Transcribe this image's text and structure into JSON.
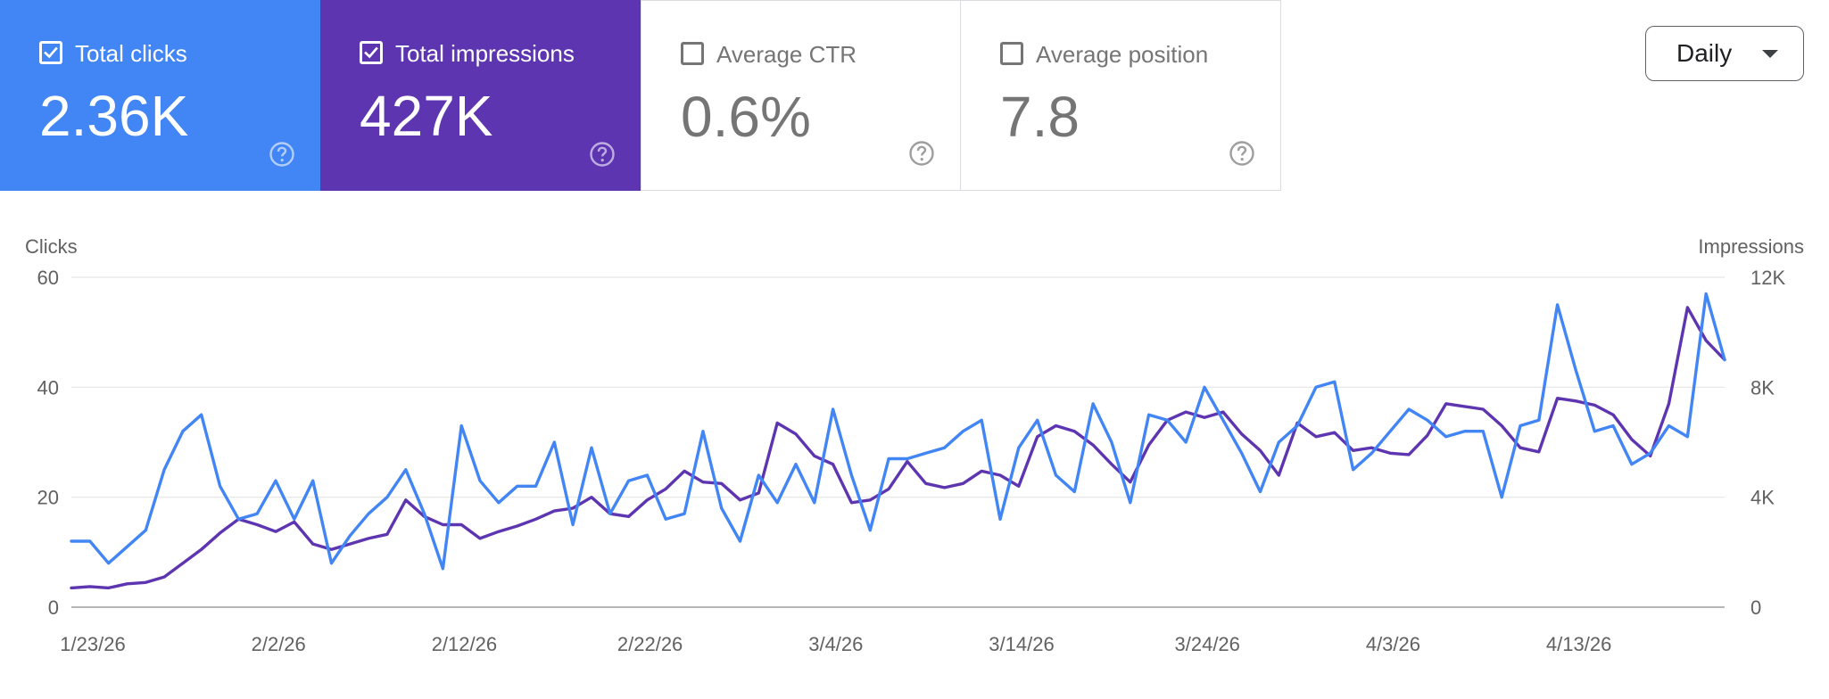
{
  "metrics": [
    {
      "label": "Total clicks",
      "value": "2.36K",
      "checked": true,
      "color": "#4285f4"
    },
    {
      "label": "Total impressions",
      "value": "427K",
      "checked": true,
      "color": "#5e35b1"
    },
    {
      "label": "Average CTR",
      "value": "0.6%",
      "checked": false,
      "color": "#ffffff"
    },
    {
      "label": "Average position",
      "value": "7.8",
      "checked": false,
      "color": "#ffffff"
    }
  ],
  "period": {
    "label": "Daily"
  },
  "icons": {
    "help": "help-circle-icon",
    "checkbox_checked": "checkbox-checked-icon",
    "checkbox_unchecked": "checkbox-unchecked-icon",
    "dropdown": "caret-down-icon"
  },
  "chart_data": {
    "type": "line",
    "y_left_label": "Clicks",
    "y_right_label": "Impressions",
    "y_left_ticks": [
      "0",
      "20",
      "40",
      "60"
    ],
    "y_right_ticks": [
      "0",
      "4K",
      "8K",
      "12K"
    ],
    "y_left_range": [
      0,
      60
    ],
    "y_right_range": [
      0,
      12000
    ],
    "x_tick_labels": [
      "1/23/26",
      "2/2/26",
      "2/12/26",
      "2/22/26",
      "3/4/26",
      "3/14/26",
      "3/24/26",
      "4/3/26",
      "4/13/26"
    ],
    "x_range": [
      "1/23/26",
      "4/24/26"
    ],
    "grid": true,
    "series": [
      {
        "name": "Total clicks",
        "axis": "left",
        "color": "#4285f4",
        "values": [
          12,
          12,
          8,
          11,
          14,
          25,
          32,
          35,
          22,
          16,
          17,
          23,
          16,
          23,
          8,
          13,
          17,
          20,
          25,
          17,
          7,
          33,
          23,
          19,
          22,
          22,
          30,
          15,
          29,
          17,
          23,
          24,
          16,
          17,
          32,
          18,
          12,
          24,
          19,
          26,
          19,
          36,
          24,
          14,
          27,
          27,
          28,
          29,
          32,
          34,
          16,
          29,
          34,
          24,
          21,
          37,
          30,
          19,
          35,
          34,
          30,
          40,
          34,
          28,
          21,
          30,
          33,
          40,
          41,
          25,
          28,
          32,
          36,
          34,
          31,
          32,
          32,
          20,
          33,
          34,
          55,
          43,
          32,
          33,
          26,
          28,
          33,
          31,
          57,
          45
        ]
      },
      {
        "name": "Total impressions",
        "axis": "right",
        "color": "#5e35b1",
        "values": [
          700,
          750,
          700,
          850,
          900,
          1100,
          1600,
          2100,
          2700,
          3200,
          3000,
          2750,
          3100,
          2300,
          2100,
          2300,
          2500,
          2650,
          3900,
          3300,
          3000,
          3000,
          2500,
          2750,
          2950,
          3200,
          3500,
          3600,
          4000,
          3400,
          3300,
          3900,
          4300,
          4950,
          4550,
          4500,
          3900,
          4150,
          6700,
          6300,
          5500,
          5200,
          3800,
          3900,
          4300,
          5300,
          4500,
          4350,
          4500,
          4950,
          4800,
          4400,
          6200,
          6600,
          6400,
          5900,
          5200,
          4550,
          5900,
          6800,
          7100,
          6900,
          7100,
          6300,
          5700,
          4800,
          6700,
          6200,
          6350,
          5700,
          5800,
          5600,
          5550,
          6250,
          7400,
          7300,
          7200,
          6600,
          5800,
          5650,
          7600,
          7500,
          7350,
          7000,
          6100,
          5500,
          7400,
          10900,
          9700,
          9000
        ]
      }
    ]
  }
}
